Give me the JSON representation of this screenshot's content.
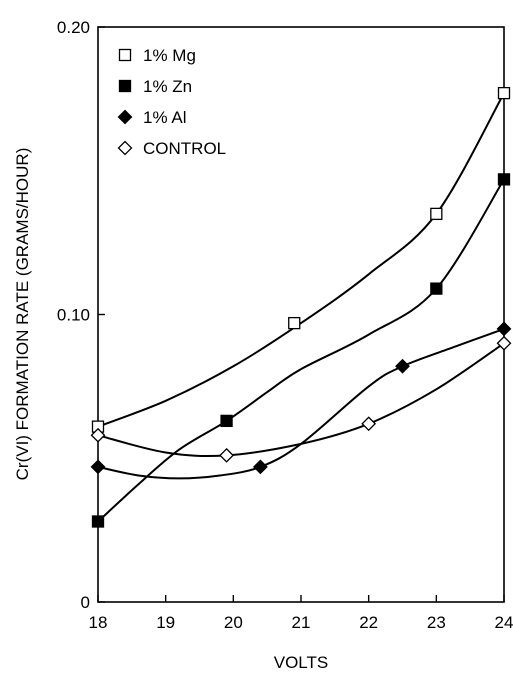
{
  "chart_data": {
    "type": "scatter",
    "title": "",
    "xlabel": "VOLTS",
    "ylabel": "Cr(VI) FORMATION RATE (GRAMS/HOUR)",
    "xlim": [
      18,
      24
    ],
    "ylim": [
      0,
      0.2
    ],
    "x_ticks": [
      "18",
      "19",
      "20",
      "21",
      "22",
      "23",
      "24"
    ],
    "y_ticks": [
      "0",
      "0.10",
      "0.20"
    ],
    "grid": false,
    "legend_position": "top-left",
    "series": [
      {
        "name": "1% Mg",
        "marker": "open-square",
        "points": [
          [
            18.0,
            0.061
          ],
          [
            20.9,
            0.097
          ],
          [
            23.0,
            0.135
          ],
          [
            24.0,
            0.177
          ]
        ],
        "curve": [
          [
            18.0,
            0.061
          ],
          [
            19.0,
            0.07
          ],
          [
            20.0,
            0.082
          ],
          [
            21.0,
            0.097
          ],
          [
            22.0,
            0.114
          ],
          [
            23.0,
            0.135
          ],
          [
            24.0,
            0.177
          ]
        ]
      },
      {
        "name": "1% Zn",
        "marker": "filled-square",
        "points": [
          [
            18.0,
            0.028
          ],
          [
            19.9,
            0.063
          ],
          [
            23.0,
            0.109
          ],
          [
            24.0,
            0.147
          ]
        ],
        "curve": [
          [
            18.0,
            0.028
          ],
          [
            18.6,
            0.041
          ],
          [
            19.2,
            0.053
          ],
          [
            19.9,
            0.063
          ],
          [
            20.5,
            0.073
          ],
          [
            21.0,
            0.081
          ],
          [
            22.0,
            0.093
          ],
          [
            23.0,
            0.109
          ],
          [
            24.0,
            0.147
          ]
        ]
      },
      {
        "name": "1% Al",
        "marker": "filled-diamond",
        "points": [
          [
            18.0,
            0.047
          ],
          [
            20.4,
            0.047
          ],
          [
            22.5,
            0.082
          ],
          [
            24.0,
            0.095
          ]
        ],
        "curve": [
          [
            18.0,
            0.047
          ],
          [
            18.6,
            0.044
          ],
          [
            19.2,
            0.043
          ],
          [
            19.8,
            0.044
          ],
          [
            20.4,
            0.047
          ],
          [
            21.0,
            0.055
          ],
          [
            22.0,
            0.075
          ],
          [
            22.5,
            0.082
          ],
          [
            23.3,
            0.089
          ],
          [
            24.0,
            0.095
          ]
        ]
      },
      {
        "name": "CONTROL",
        "marker": "open-diamond",
        "points": [
          [
            18.0,
            0.058
          ],
          [
            19.9,
            0.051
          ],
          [
            22.0,
            0.062
          ],
          [
            24.0,
            0.09
          ]
        ],
        "curve": [
          [
            18.0,
            0.058
          ],
          [
            19.0,
            0.052
          ],
          [
            19.9,
            0.051
          ],
          [
            21.0,
            0.055
          ],
          [
            22.0,
            0.062
          ],
          [
            23.0,
            0.074
          ],
          [
            24.0,
            0.09
          ]
        ]
      }
    ]
  }
}
